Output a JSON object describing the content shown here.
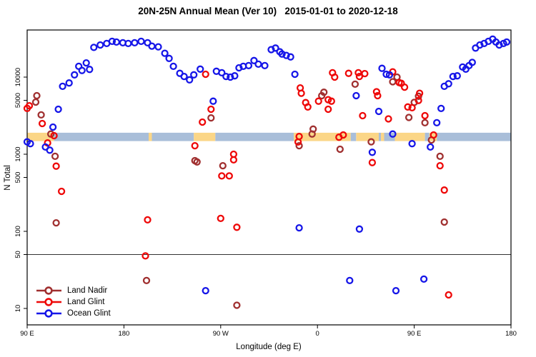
{
  "title": "20N-25N Annual Mean (Ver 10)   2015-01-01 to 2020-12-18",
  "chart_data": {
    "type": "scatter",
    "xlabel": "Longitude (deg E)",
    "ylabel": "N Total",
    "x_axis": {
      "range": [
        90,
        540
      ],
      "ticks": [
        90,
        180,
        270,
        360,
        450,
        540
      ],
      "tick_labels": [
        "90 E",
        "180",
        "90 W",
        "0",
        "90 E",
        "180"
      ]
    },
    "y_axis": {
      "scale": "log",
      "range": [
        6,
        41000
      ],
      "ticks": [
        10,
        50,
        100,
        500,
        1000,
        5000,
        10000
      ],
      "tick_labels": [
        "10",
        "50",
        "100",
        "500",
        "1000",
        "5000",
        "10000"
      ]
    },
    "reference_line": 50,
    "map_strip": {
      "description": "land-ocean strip of the 20N-25N latitude band",
      "value_range": [
        1480,
        1900
      ],
      "ocean_color": "#A9BED9",
      "land_color": "#FBD687",
      "segments": [
        [
          90,
          115,
          "land"
        ],
        [
          115,
          203,
          "ocean"
        ],
        [
          203,
          206,
          "land"
        ],
        [
          206,
          245,
          "ocean"
        ],
        [
          245,
          265,
          "land"
        ],
        [
          265,
          338,
          "ocean"
        ],
        [
          338,
          391,
          "land"
        ],
        [
          391,
          396,
          "ocean"
        ],
        [
          396,
          417,
          "land"
        ],
        [
          417,
          419,
          "ocean"
        ],
        [
          419,
          422,
          "land"
        ],
        [
          422,
          432,
          "ocean"
        ],
        [
          432,
          460,
          "land"
        ],
        [
          460,
          464,
          "ocean"
        ],
        [
          464,
          471,
          "land"
        ],
        [
          471,
          540,
          "ocean"
        ]
      ]
    },
    "series": [
      {
        "name": "Land Nadir",
        "color": "#A03030",
        "points": [
          [
            99,
            5740
          ],
          [
            98,
            4740
          ],
          [
            103,
            3240
          ],
          [
            112,
            1830
          ],
          [
            116,
            940
          ],
          [
            117,
            129
          ],
          [
            201,
            23
          ],
          [
            246,
            826
          ],
          [
            248,
            794
          ],
          [
            261,
            2960
          ],
          [
            272,
            710
          ],
          [
            285,
            11
          ],
          [
            395,
            8100
          ],
          [
            366,
            6360
          ],
          [
            364,
            5750
          ],
          [
            356,
            2120
          ],
          [
            355,
            1830
          ],
          [
            343,
            1290
          ],
          [
            381,
            1160
          ],
          [
            434,
            10000
          ],
          [
            430,
            8700
          ],
          [
            450,
            4700
          ],
          [
            454,
            5650
          ],
          [
            445,
            3000
          ],
          [
            460,
            2560
          ],
          [
            466,
            1530
          ],
          [
            410,
            1450
          ],
          [
            474,
            940
          ],
          [
            478,
            132
          ]
        ]
      },
      {
        "name": "Land Glint",
        "color": "#EE0808",
        "points": [
          [
            92,
            4250
          ],
          [
            90,
            3930
          ],
          [
            104,
            2500
          ],
          [
            115,
            1740
          ],
          [
            109,
            1400
          ],
          [
            117,
            700
          ],
          [
            122,
            330
          ],
          [
            202,
            141
          ],
          [
            200,
            48
          ],
          [
            246,
            1290
          ],
          [
            256,
            10900
          ],
          [
            261,
            3830
          ],
          [
            253,
            2610
          ],
          [
            282,
            1000
          ],
          [
            282,
            845
          ],
          [
            271,
            523
          ],
          [
            278,
            523
          ],
          [
            270,
            147
          ],
          [
            285,
            113
          ],
          [
            374,
            11400
          ],
          [
            376,
            10000
          ],
          [
            389,
            11200
          ],
          [
            398,
            11400
          ],
          [
            399,
            10200
          ],
          [
            404,
            11100
          ],
          [
            344,
            7240
          ],
          [
            345,
            6170
          ],
          [
            349,
            4670
          ],
          [
            351,
            4100
          ],
          [
            361,
            4870
          ],
          [
            370,
            5100
          ],
          [
            373,
            4870
          ],
          [
            370,
            3830
          ],
          [
            402,
            3160
          ],
          [
            343,
            1700
          ],
          [
            342,
            1440
          ],
          [
            380,
            1660
          ],
          [
            384,
            1780
          ],
          [
            430,
            11700
          ],
          [
            436,
            8500
          ],
          [
            438,
            8330
          ],
          [
            441,
            7410
          ],
          [
            415,
            6460
          ],
          [
            416,
            5750
          ],
          [
            444,
            4100
          ],
          [
            448,
            4010
          ],
          [
            454,
            4980
          ],
          [
            455,
            6170
          ],
          [
            426,
            2870
          ],
          [
            460,
            3160
          ],
          [
            411,
            779
          ],
          [
            468,
            1780
          ],
          [
            474,
            710
          ],
          [
            478,
            343
          ],
          [
            482,
            15
          ]
        ]
      },
      {
        "name": "Ocean Glint",
        "color": "#1616E8",
        "points": [
          [
            90,
            1450
          ],
          [
            93,
            1370
          ],
          [
            107,
            1240
          ],
          [
            111,
            1130
          ],
          [
            114,
            2250
          ],
          [
            119,
            3830
          ],
          [
            123,
            7590
          ],
          [
            129,
            8390
          ],
          [
            134,
            10700
          ],
          [
            141,
            12200
          ],
          [
            138,
            13800
          ],
          [
            145,
            15300
          ],
          [
            148,
            12600
          ],
          [
            152,
            24300
          ],
          [
            158,
            26100
          ],
          [
            164,
            27300
          ],
          [
            169,
            29100
          ],
          [
            173,
            28500
          ],
          [
            179,
            27900
          ],
          [
            184,
            27300
          ],
          [
            190,
            27900
          ],
          [
            196,
            29100
          ],
          [
            202,
            27900
          ],
          [
            206,
            25200
          ],
          [
            212,
            24700
          ],
          [
            218,
            20400
          ],
          [
            222,
            17500
          ],
          [
            226,
            13800
          ],
          [
            232,
            11200
          ],
          [
            236,
            10200
          ],
          [
            241,
            9230
          ],
          [
            245,
            10700
          ],
          [
            251,
            12700
          ],
          [
            266,
            11900
          ],
          [
            271,
            11400
          ],
          [
            275,
            10200
          ],
          [
            279,
            10000
          ],
          [
            283,
            10400
          ],
          [
            287,
            13200
          ],
          [
            291,
            13800
          ],
          [
            296,
            14100
          ],
          [
            301,
            16400
          ],
          [
            305,
            14700
          ],
          [
            311,
            14100
          ],
          [
            317,
            22700
          ],
          [
            321,
            23800
          ],
          [
            325,
            21300
          ],
          [
            327,
            19900
          ],
          [
            331,
            19100
          ],
          [
            335,
            18300
          ],
          [
            339,
            10900
          ],
          [
            263,
            4870
          ],
          [
            396,
            5750
          ],
          [
            343,
            111
          ],
          [
            399,
            107
          ],
          [
            390,
            23
          ],
          [
            256,
            17
          ],
          [
            420,
            13000
          ],
          [
            424,
            10900
          ],
          [
            427,
            10700
          ],
          [
            417,
            3590
          ],
          [
            430,
            1830
          ],
          [
            448,
            1370
          ],
          [
            465,
            1240
          ],
          [
            411,
            1060
          ],
          [
            478,
            7590
          ],
          [
            475,
            3920
          ],
          [
            471,
            2560
          ],
          [
            459,
            24
          ],
          [
            433,
            17
          ],
          [
            482,
            8200
          ],
          [
            486,
            10200
          ],
          [
            490,
            10400
          ],
          [
            495,
            13500
          ],
          [
            498,
            12700
          ],
          [
            501,
            14100
          ],
          [
            504,
            15500
          ],
          [
            507,
            23800
          ],
          [
            511,
            26100
          ],
          [
            515,
            27300
          ],
          [
            519,
            29100
          ],
          [
            523,
            31100
          ],
          [
            526,
            28500
          ],
          [
            529,
            26100
          ],
          [
            533,
            27300
          ],
          [
            536,
            28500
          ]
        ]
      }
    ]
  },
  "legend": {
    "items": [
      "Land Nadir",
      "Land Glint",
      "Ocean Glint"
    ]
  }
}
